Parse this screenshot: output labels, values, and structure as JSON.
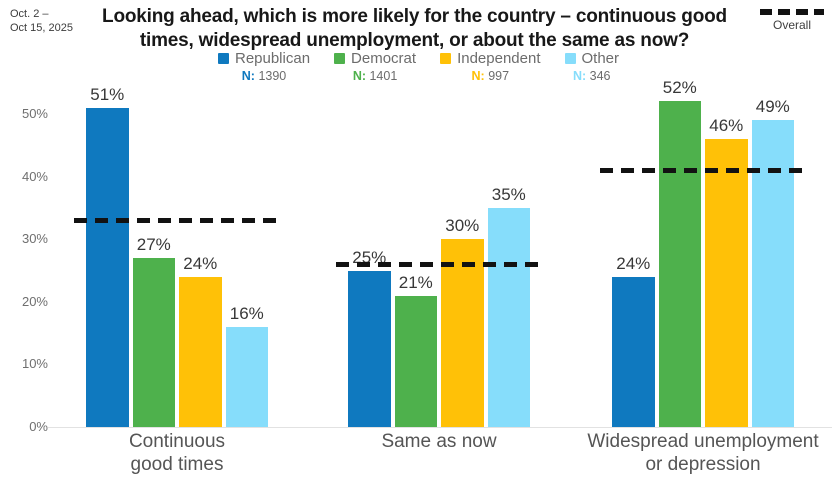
{
  "header": {
    "date_range_line1": "Oct. 2 –",
    "date_range_line2": "Oct 15, 2025",
    "title": "Looking ahead, which is more likely for the country – continuous good times, widespread unemployment, or about the same as now?",
    "overall_label": "Overall"
  },
  "legend": {
    "items": [
      {
        "label": "Republican",
        "n_label": "N:",
        "n": "1390",
        "color": "#0F79BF"
      },
      {
        "label": "Democrat",
        "n_label": "N:",
        "n": "1401",
        "color": "#4EB14C"
      },
      {
        "label": "Independent",
        "n_label": "N:",
        "n": "997",
        "color": "#FFC107"
      },
      {
        "label": "Other",
        "n_label": "N:",
        "n": "346",
        "color": "#86DDFB"
      }
    ]
  },
  "chart_data": {
    "type": "bar",
    "title": "Looking ahead, which is more likely for the country – continuous good times, widespread unemployment, or about the same as now?",
    "categories": [
      "Continuous good times",
      "Same as now",
      "Widespread unemployment or depression"
    ],
    "categories_display": [
      [
        "Continuous",
        "good times"
      ],
      [
        "Same as now"
      ],
      [
        "Widespread unemployment",
        "or depression"
      ]
    ],
    "series": [
      {
        "name": "Republican",
        "n": 1390,
        "color": "#0F79BF",
        "values": [
          51,
          25,
          24
        ]
      },
      {
        "name": "Democrat",
        "n": 1401,
        "color": "#4EB14C",
        "values": [
          27,
          21,
          52
        ]
      },
      {
        "name": "Independent",
        "n": 997,
        "color": "#FFC107",
        "values": [
          24,
          30,
          46
        ]
      },
      {
        "name": "Other",
        "n": 346,
        "color": "#86DDFB",
        "values": [
          16,
          35,
          49
        ]
      }
    ],
    "overall": {
      "name": "Overall",
      "values": [
        33,
        26,
        41
      ],
      "style": "black-dashed-line"
    },
    "value_suffix": "%",
    "xlabel": "",
    "ylabel": "",
    "y_ticks": [
      "0%",
      "10%",
      "20%",
      "30%",
      "40%",
      "50%"
    ],
    "ylim": [
      0,
      54
    ],
    "grid": false,
    "legend_position": "top"
  }
}
